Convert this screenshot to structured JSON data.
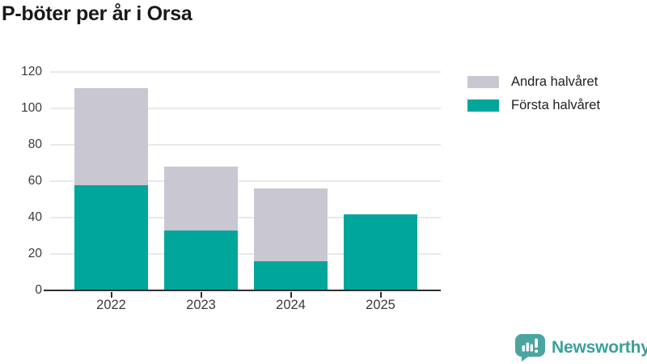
{
  "title": "P-böter per år i Orsa",
  "legend": {
    "items": [
      {
        "label": "Andra halvåret",
        "color": "#c9c7d1"
      },
      {
        "label": "Första halvåret",
        "color": "#00a69a"
      }
    ]
  },
  "chart_data": {
    "type": "bar",
    "stacked": true,
    "title": "P-böter per år i Orsa",
    "categories": [
      "2022",
      "2023",
      "2024",
      "2025"
    ],
    "series": [
      {
        "name": "Första halvåret",
        "color": "#00a69a",
        "values": [
          58,
          33,
          16,
          42
        ]
      },
      {
        "name": "Andra halvåret",
        "color": "#c9c7d1",
        "values": [
          53,
          35,
          40,
          0
        ]
      }
    ],
    "xlabel": "",
    "ylabel": "",
    "ylim": [
      0,
      120
    ],
    "yticks": [
      0,
      20,
      40,
      60,
      80,
      100,
      120
    ],
    "grid": true,
    "legend_position": "top-right"
  },
  "footer": {
    "brand": "Newsworthy",
    "brand_color": "#3aa099",
    "logo_icon": "bar-chart-speech-bubble-icon",
    "logo_color": "#4aa5a0"
  },
  "colors": {
    "background": "#ffffff",
    "axis": "#2f2f2f",
    "grid": "#e9e9e9",
    "tick_text": "#3a3a3a",
    "title_text": "#191919"
  }
}
